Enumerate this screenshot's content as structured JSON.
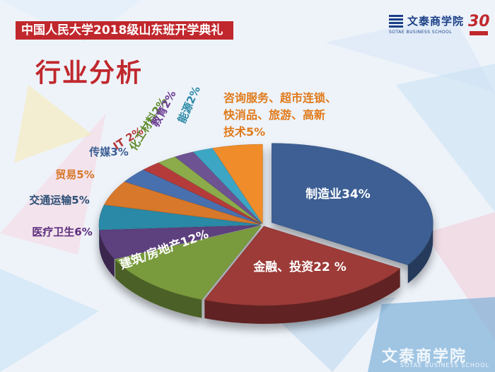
{
  "header": {
    "banner_title": "中国人民大学2018级山东班开学典礼",
    "section_title": "行业分析"
  },
  "logo": {
    "name_cn": "文泰商学院",
    "name_en": "SOTAE BUSINESS SCHOOL",
    "anniversary": "30"
  },
  "watermark": {
    "name_cn": "文泰商学院",
    "name_en": "SOTAE BUSINESS SCHOOL"
  },
  "colors": {
    "brand_red": "#c0282d",
    "brand_blue": "#1a3f86"
  },
  "chart_data": {
    "type": "pie",
    "title": "",
    "categories": [
      "制造业",
      "金融、投资",
      "建筑/房地产",
      "医疗卫生",
      "交通运输",
      "贸易",
      "传媒",
      "IT",
      "化工材料",
      "教育",
      "能源",
      "咨询服务、超市连锁、快消品、旅游、高新技术"
    ],
    "values": [
      34,
      22,
      12,
      6,
      5,
      5,
      3,
      2,
      2,
      2,
      2,
      5
    ],
    "data_labels": [
      "制造业34%",
      "金融、投资22 %",
      "建筑/房地产12%",
      "医疗卫生6%",
      "交通运输5%",
      "贸易5%",
      "传媒3%",
      "IT 2%",
      "化工材料2%",
      "教育2%",
      "能源2%",
      "咨询服务、超市连锁、快消品、旅游、高新技术5%"
    ],
    "colors": [
      "#3c5f94",
      "#9c3a37",
      "#7a9b3d",
      "#5d3f7e",
      "#2c89a6",
      "#d8782a",
      "#4a6fae",
      "#b53a3a",
      "#8cab4b",
      "#6e5393",
      "#3ea6c4",
      "#f08d2a"
    ],
    "label_colors": [
      "#ffffff",
      "#ffffff",
      "#ffffff",
      "#5d2f7e",
      "#2d4f75",
      "#d8782a",
      "#3c5f94",
      "#b53a3a",
      "#5f8a2b",
      "#6e3f93",
      "#2c89a6",
      "#e07a1a"
    ],
    "legend": "none",
    "view": "3d-exploded"
  }
}
